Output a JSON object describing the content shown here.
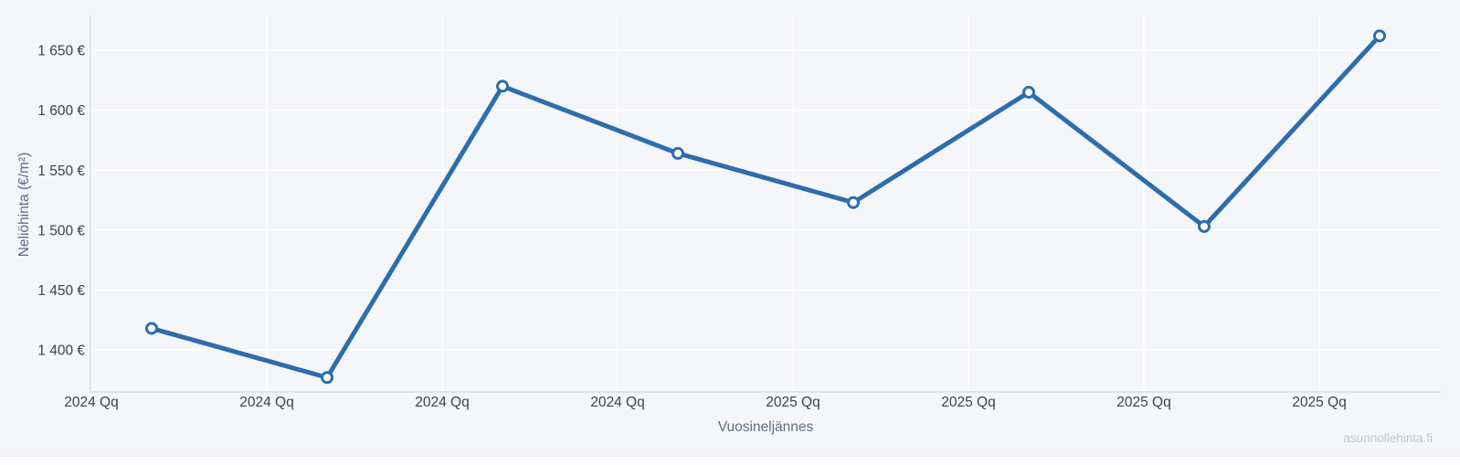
{
  "page": {
    "watermark": "asunnollehinta.fi"
  },
  "chart_data": {
    "type": "line",
    "xlabel": "Vuosineljännes",
    "ylabel": "Neliöhinta (€/m²)",
    "categories": [
      "2024 Qq",
      "2024 Qq",
      "2024 Qq",
      "2024 Qq",
      "2025 Qq",
      "2025 Qq",
      "2025 Qq",
      "2025 Qq"
    ],
    "values": [
      1418,
      1377,
      1620,
      1564,
      1523,
      1615,
      1503,
      1662
    ],
    "y_ticks": [
      1400,
      1450,
      1500,
      1550,
      1600,
      1650
    ],
    "y_tick_labels": [
      "1 400 €",
      "1 450 €",
      "1 500 €",
      "1 550 €",
      "1 600 €",
      "1 650 €"
    ],
    "ylim": [
      1365,
      1679
    ],
    "grid": true,
    "legend": "none",
    "line_color": "#2e6dac",
    "marker": "open-circle",
    "marker_fill": "#ffffff",
    "background_color": "#f4f6f9",
    "axis_line_color": "#d8dce3",
    "gridline_color": "rgba(255,255,255,0.85)"
  }
}
